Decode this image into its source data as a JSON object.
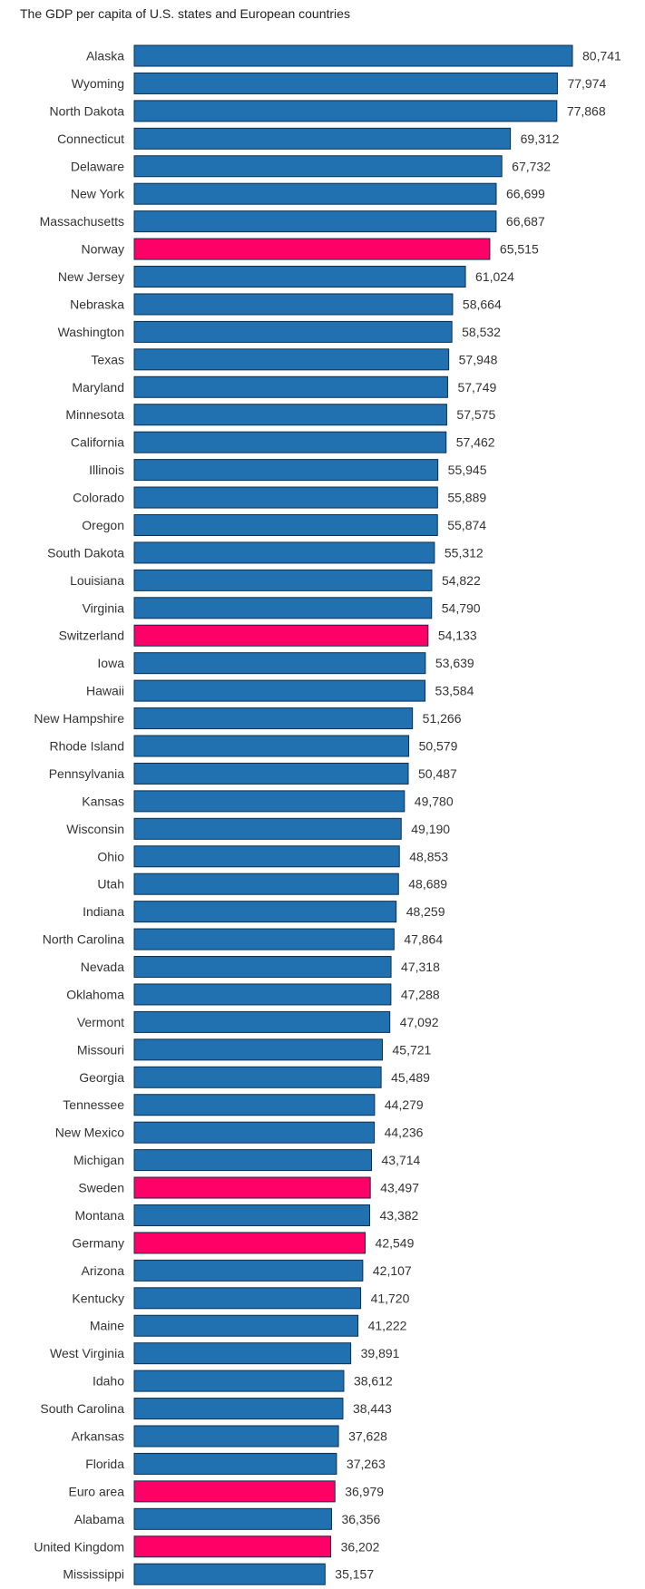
{
  "chart_data": {
    "type": "bar",
    "orientation": "horizontal",
    "title": "The GDP per capita of U.S. states and European countries",
    "xlabel": "",
    "ylabel": "",
    "xlim": [
      0,
      80741
    ],
    "grid": false,
    "legend": "none",
    "colors": {
      "us_state": "#2171b1",
      "european": "#ff0066",
      "border": "#0b2f4f"
    },
    "categories": [
      "Alaska",
      "Wyoming",
      "North Dakota",
      "Connecticut",
      "Delaware",
      "New York",
      "Massachusetts",
      "Norway",
      "New Jersey",
      "Nebraska",
      "Washington",
      "Texas",
      "Maryland",
      "Minnesota",
      "California",
      "Illinois",
      "Colorado",
      "Oregon",
      "South Dakota",
      "Louisiana",
      "Virginia",
      "Switzerland",
      "Iowa",
      "Hawaii",
      "New Hampshire",
      "Rhode Island",
      "Pennsylvania",
      "Kansas",
      "Wisconsin",
      "Ohio",
      "Utah",
      "Indiana",
      "North Carolina",
      "Nevada",
      "Oklahoma",
      "Vermont",
      "Missouri",
      "Georgia",
      "Tennessee",
      "New Mexico",
      "Michigan",
      "Sweden",
      "Montana",
      "Germany",
      "Arizona",
      "Kentucky",
      "Maine",
      "West Virginia",
      "Idaho",
      "South Carolina",
      "Arkansas",
      "Florida",
      "Euro area",
      "Alabama",
      "United Kingdom",
      "Mississippi"
    ],
    "values": [
      80741,
      77974,
      77868,
      69312,
      67732,
      66699,
      66687,
      65515,
      61024,
      58664,
      58532,
      57948,
      57749,
      57575,
      57462,
      55945,
      55889,
      55874,
      55312,
      54822,
      54790,
      54133,
      53639,
      53584,
      51266,
      50579,
      50487,
      49780,
      49190,
      48853,
      48689,
      48259,
      47864,
      47318,
      47288,
      47092,
      45721,
      45489,
      44279,
      44236,
      43714,
      43497,
      43382,
      42549,
      42107,
      41720,
      41222,
      39891,
      38612,
      38443,
      37628,
      37263,
      36979,
      36356,
      36202,
      35157
    ],
    "value_labels": [
      "80,741",
      "77,974",
      "77,868",
      "69,312",
      "67,732",
      "66,699",
      "66,687",
      "65,515",
      "61,024",
      "58,664",
      "58,532",
      "57,948",
      "57,749",
      "57,575",
      "57,462",
      "55,945",
      "55,889",
      "55,874",
      "55,312",
      "54,822",
      "54,790",
      "54,133",
      "53,639",
      "53,584",
      "51,266",
      "50,579",
      "50,487",
      "49,780",
      "49,190",
      "48,853",
      "48,689",
      "48,259",
      "47,864",
      "47,318",
      "47,288",
      "47,092",
      "45,721",
      "45,489",
      "44,279",
      "44,236",
      "43,714",
      "43,497",
      "43,382",
      "42,549",
      "42,107",
      "41,720",
      "41,222",
      "39,891",
      "38,612",
      "38,443",
      "37,628",
      "37,263",
      "36,979",
      "36,356",
      "36,202",
      "35,157"
    ],
    "highlighted": [
      "Norway",
      "Switzerland",
      "Sweden",
      "Germany",
      "Euro area",
      "United Kingdom"
    ]
  }
}
